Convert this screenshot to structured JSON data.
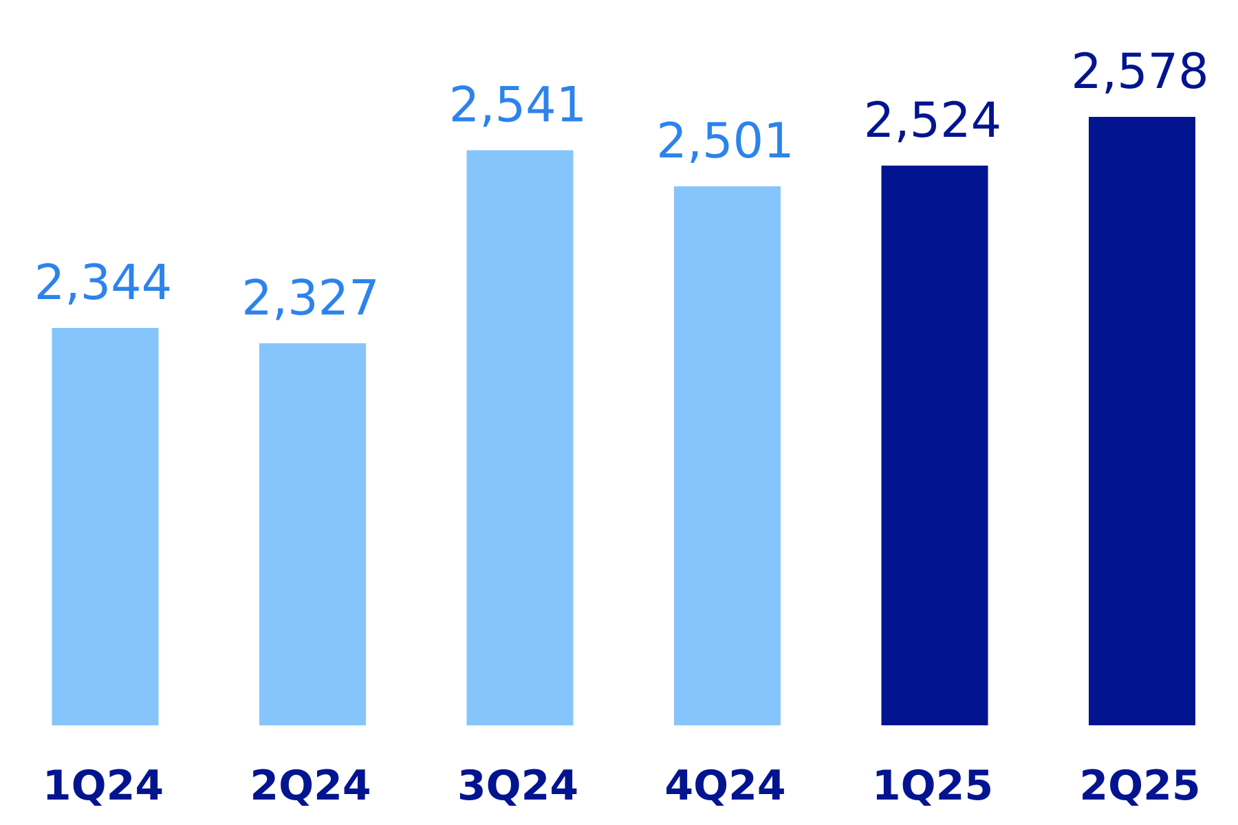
{
  "chart_data": {
    "type": "bar",
    "title": "",
    "xlabel": "",
    "ylabel": "",
    "categories": [
      "1Q24",
      "2Q24",
      "3Q24",
      "4Q24",
      "1Q25",
      "2Q25"
    ],
    "values": [
      2344,
      2327,
      2541,
      2501,
      2524,
      2578
    ],
    "value_labels": [
      "2,344",
      "2,327",
      "2,541",
      "2,501",
      "2,524",
      "2,578"
    ],
    "highlight": [
      false,
      false,
      false,
      false,
      true,
      true
    ],
    "colors": {
      "bar": "#85C5FC",
      "bar_highlight": "#02148F",
      "label": "#2C83EC",
      "label_highlight": "#02148F",
      "category_label": "#02148F"
    },
    "grid": false,
    "legend": "none"
  }
}
